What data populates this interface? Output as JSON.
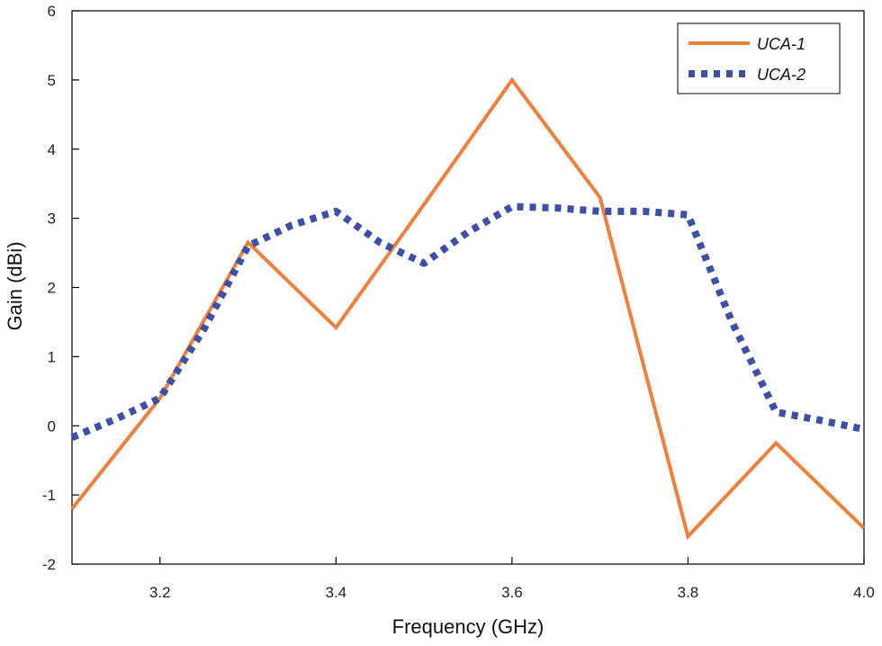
{
  "chart_data": {
    "type": "line",
    "title": "",
    "xlabel": "Frequency (GHz)",
    "ylabel": "Gain (dBi)",
    "xlim": [
      3.1,
      4.0
    ],
    "ylim": [
      -2,
      6
    ],
    "x_ticks": [
      "3.2",
      "3.4",
      "3.6",
      "3.8",
      "4.0"
    ],
    "x_tick_values": [
      3.2,
      3.4,
      3.6,
      3.8,
      4.0
    ],
    "y_ticks": [
      "-2",
      "-1",
      "0",
      "1",
      "2",
      "3",
      "4",
      "5",
      "6"
    ],
    "y_tick_values": [
      -2,
      -1,
      0,
      1,
      2,
      3,
      4,
      5,
      6
    ],
    "grid": false,
    "legend_position": "top-right",
    "series": [
      {
        "name": "UCA-1",
        "color": "#F07F3C",
        "style": "solid",
        "x": [
          3.1,
          3.2,
          3.3,
          3.4,
          3.5,
          3.6,
          3.7,
          3.8,
          3.9,
          4.0
        ],
        "y": [
          -1.2,
          0.4,
          2.65,
          1.42,
          3.2,
          5.0,
          3.3,
          -1.6,
          -0.25,
          -1.48
        ]
      },
      {
        "name": "UCA-2",
        "color": "#3D4FA6",
        "style": "dotted",
        "x": [
          3.1,
          3.15,
          3.2,
          3.25,
          3.3,
          3.35,
          3.4,
          3.45,
          3.5,
          3.55,
          3.6,
          3.65,
          3.7,
          3.75,
          3.8,
          3.85,
          3.9,
          3.95,
          4.0
        ],
        "y": [
          -0.17,
          0.1,
          0.4,
          1.4,
          2.6,
          2.9,
          3.1,
          2.65,
          2.35,
          2.8,
          3.17,
          3.15,
          3.1,
          3.1,
          3.05,
          1.5,
          0.2,
          0.08,
          -0.05
        ]
      }
    ]
  }
}
